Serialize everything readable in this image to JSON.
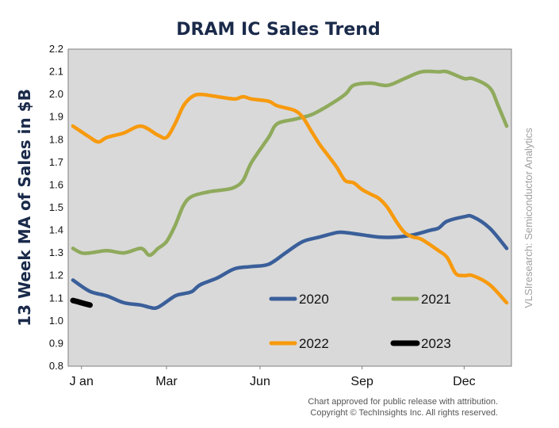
{
  "chart_data": {
    "type": "line",
    "title": "DRAM IC Sales Trend",
    "ylabel": "13 Week MA of Sales in $B",
    "xlabel": "",
    "ylim": [
      0.8,
      2.2
    ],
    "yticks": [
      "0.8",
      "0.9",
      "1.0",
      "1.1",
      "1.2",
      "1.3",
      "1.4",
      "1.5",
      "1.6",
      "1.7",
      "1.8",
      "1.9",
      "2.0",
      "2.1",
      "2.2"
    ],
    "xlim": [
      1,
      52
    ],
    "xticks": [
      {
        "week": 2,
        "label": "J an"
      },
      {
        "week": 12,
        "label": "Mar"
      },
      {
        "week": 23,
        "label": "Jun"
      },
      {
        "week": 35,
        "label": "Sep"
      },
      {
        "week": 47,
        "label": "Dec"
      }
    ],
    "grid": false,
    "plot_background": "#d9d9d9",
    "side_text": "VLSIresearch: Semiconductor Analytics",
    "footnote": [
      "Chart approved  for public release with attribution.",
      "Copyright © TechInsights Inc.  All rights reserved."
    ],
    "series": [
      {
        "name": "2020",
        "color": "#3a5f9a",
        "x": [
          1,
          3,
          5,
          7,
          9,
          10,
          11,
          13,
          14,
          15,
          16,
          18,
          20,
          22,
          24,
          26,
          28,
          30,
          32,
          33,
          35,
          37,
          39,
          41,
          43,
          44,
          45,
          47,
          48,
          50,
          52
        ],
        "y": [
          1.18,
          1.13,
          1.11,
          1.08,
          1.07,
          1.06,
          1.06,
          1.11,
          1.12,
          1.13,
          1.16,
          1.19,
          1.23,
          1.24,
          1.25,
          1.3,
          1.35,
          1.37,
          1.39,
          1.39,
          1.38,
          1.37,
          1.37,
          1.38,
          1.4,
          1.41,
          1.44,
          1.46,
          1.46,
          1.41,
          1.32
        ]
      },
      {
        "name": "2021",
        "color": "#8faa5c",
        "x": [
          1,
          2,
          3,
          5,
          7,
          9,
          10,
          11,
          12,
          13,
          14,
          15,
          17,
          19,
          20,
          21,
          22,
          24,
          25,
          27,
          29,
          31,
          33,
          34,
          36,
          38,
          40,
          42,
          44,
          45,
          47,
          48,
          50,
          51,
          52
        ],
        "y": [
          1.32,
          1.3,
          1.3,
          1.31,
          1.3,
          1.32,
          1.29,
          1.32,
          1.35,
          1.42,
          1.51,
          1.55,
          1.57,
          1.58,
          1.59,
          1.62,
          1.7,
          1.81,
          1.87,
          1.89,
          1.91,
          1.95,
          2.0,
          2.04,
          2.05,
          2.04,
          2.07,
          2.1,
          2.1,
          2.1,
          2.07,
          2.07,
          2.03,
          1.95,
          1.86
        ]
      },
      {
        "name": "2022",
        "color": "#f79a0e",
        "x": [
          1,
          3,
          4,
          5,
          7,
          9,
          11,
          12,
          13,
          14,
          15,
          16,
          18,
          20,
          21,
          22,
          24,
          25,
          27,
          28,
          29,
          30,
          31,
          32,
          33,
          34,
          35,
          36,
          37,
          38,
          39,
          40,
          41,
          42,
          44,
          45,
          46,
          47,
          48,
          50,
          52
        ],
        "y": [
          1.86,
          1.81,
          1.79,
          1.81,
          1.83,
          1.86,
          1.82,
          1.81,
          1.87,
          1.95,
          1.99,
          2.0,
          1.99,
          1.98,
          1.99,
          1.98,
          1.97,
          1.95,
          1.93,
          1.9,
          1.84,
          1.78,
          1.73,
          1.68,
          1.62,
          1.61,
          1.58,
          1.56,
          1.54,
          1.5,
          1.44,
          1.39,
          1.37,
          1.36,
          1.31,
          1.28,
          1.21,
          1.2,
          1.2,
          1.16,
          1.08
        ]
      },
      {
        "name": "2023",
        "color": "#000000",
        "x": [
          1,
          2,
          3
        ],
        "y": [
          1.09,
          1.08,
          1.07
        ]
      }
    ]
  }
}
